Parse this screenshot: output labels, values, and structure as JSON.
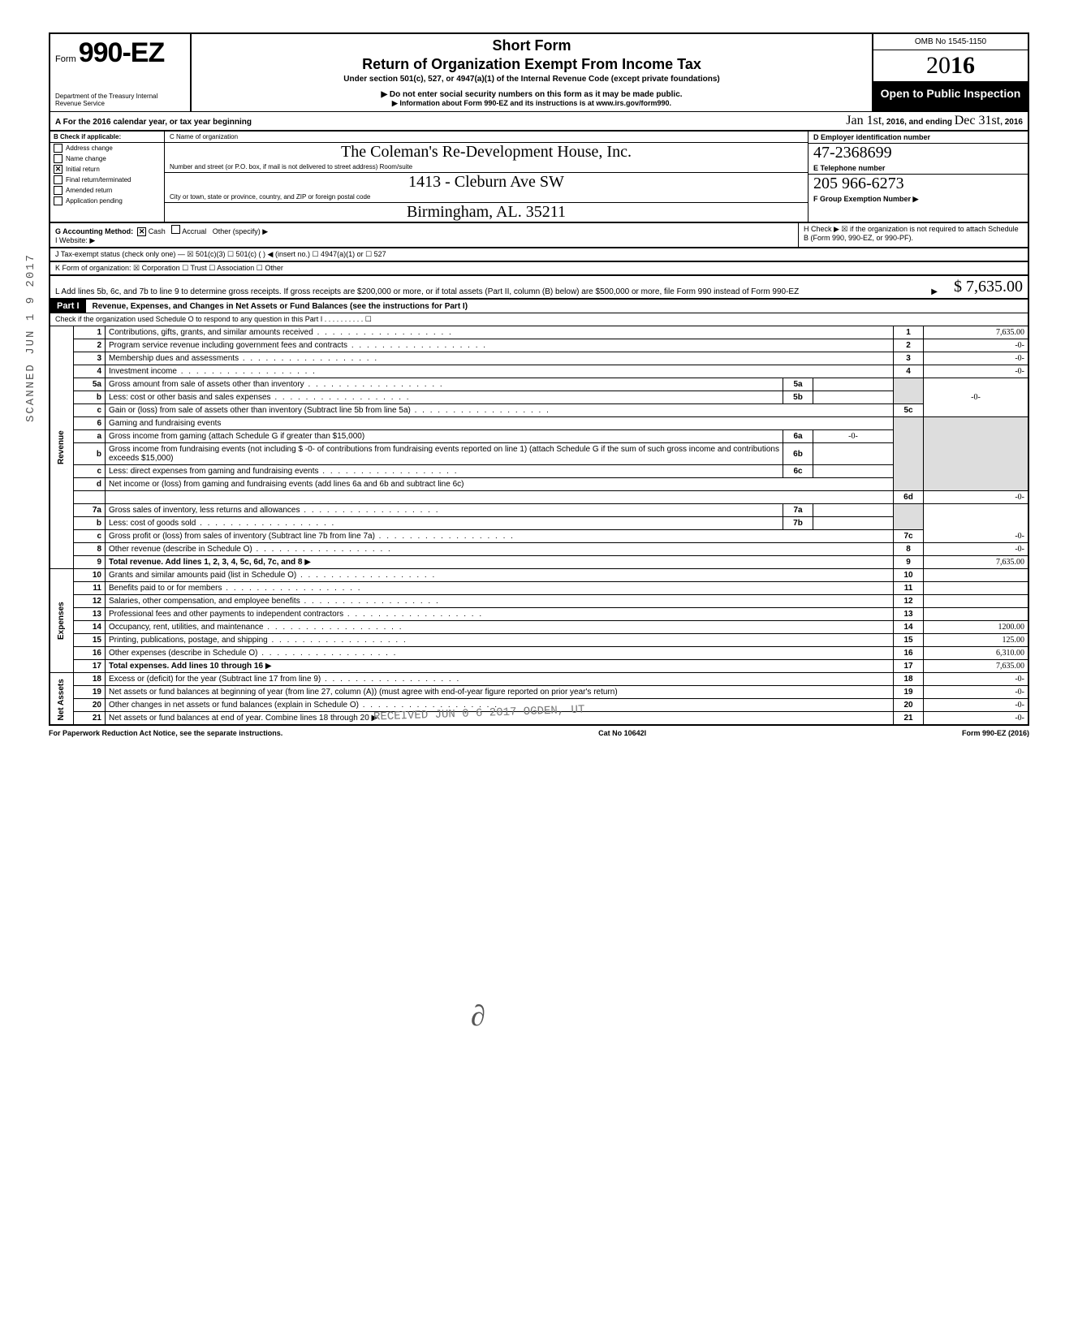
{
  "side_stamp": "SCANNED JUN 1 9 2017",
  "header": {
    "form_label": "Form",
    "form_number": "990-EZ",
    "dept": "Department of the Treasury\nInternal Revenue Service",
    "short_form": "Short Form",
    "title": "Return of Organization Exempt From Income Tax",
    "under": "Under section 501(c), 527, or 4947(a)(1) of the Internal Revenue Code (except private foundations)",
    "donot": "▶ Do not enter social security numbers on this form as it may be made public.",
    "info": "▶ Information about Form 990-EZ and its instructions is at www.irs.gov/form990.",
    "omb": "OMB No 1545-1150",
    "year_prefix": "20",
    "year_bold": "16",
    "open": "Open to Public Inspection"
  },
  "rowA": {
    "label": "A  For the 2016 calendar year, or tax year beginning",
    "begin": "Jan 1st",
    "mid": ", 2016, and ending",
    "end": "Dec 31st",
    "yr": ", 2016"
  },
  "colB": {
    "header": "B  Check if applicable:",
    "items": [
      {
        "label": "Address change",
        "checked": false
      },
      {
        "label": "Name change",
        "checked": false
      },
      {
        "label": "Initial return",
        "checked": true
      },
      {
        "label": "Final return/terminated",
        "checked": false
      },
      {
        "label": "Amended return",
        "checked": false
      },
      {
        "label": "Application pending",
        "checked": false
      }
    ]
  },
  "colC": {
    "name_label": "C  Name of organization",
    "name": "The Coleman's Re-Development House, Inc.",
    "addr_label": "Number and street (or P.O. box, if mail is not delivered to street address)          Room/suite",
    "addr": "1413 - Cleburn Ave SW",
    "city_label": "City or town, state or province, country, and ZIP or foreign postal code",
    "city": "Birmingham, AL.  35211"
  },
  "colD": {
    "label": "D Employer identification number",
    "val": "47-2368699"
  },
  "colE": {
    "label": "E  Telephone number",
    "val": "205  966-6273"
  },
  "colF": {
    "label": "F  Group Exemption Number ▶",
    "val": ""
  },
  "rowG": {
    "label": "G  Accounting Method:",
    "cash": "Cash",
    "accrual": "Accrual",
    "other": "Other (specify) ▶"
  },
  "rowH": "H  Check ▶ ☒ if the organization is not required to attach Schedule B (Form 990, 990-EZ, or 990-PF).",
  "rowI": "I   Website: ▶",
  "rowJ": "J  Tax-exempt status (check only one) —  ☒ 501(c)(3)   ☐ 501(c) (      ) ◀ (insert no.)  ☐ 4947(a)(1) or   ☐ 527",
  "rowK": "K  Form of organization:   ☒ Corporation    ☐ Trust    ☐ Association    ☐ Other",
  "rowL": {
    "text": "L  Add lines 5b, 6c, and 7b to line 9 to determine gross receipts. If gross receipts are $200,000 or more, or if total assets (Part II, column (B) below) are $500,000 or more, file Form 990 instead of Form 990-EZ",
    "amt": "$ 7,635.00"
  },
  "part1": {
    "label": "Part I",
    "title": "Revenue, Expenses, and Changes in Net Assets or Fund Balances (see the instructions for Part I)",
    "check": "Check if the organization used Schedule O to respond to any question in this Part I . . . . . . . . . . ☐"
  },
  "lines": {
    "l1": {
      "n": "1",
      "d": "Contributions, gifts, grants, and similar amounts received",
      "rn": "1",
      "rv": "7,635.00"
    },
    "l2": {
      "n": "2",
      "d": "Program service revenue including government fees and contracts",
      "rn": "2",
      "rv": "-0-"
    },
    "l3": {
      "n": "3",
      "d": "Membership dues and assessments",
      "rn": "3",
      "rv": "-0-"
    },
    "l4": {
      "n": "4",
      "d": "Investment income",
      "rn": "4",
      "rv": "-0-"
    },
    "l5a": {
      "n": "5a",
      "d": "Gross amount from sale of assets other than inventory",
      "in": "5a",
      "iv": ""
    },
    "l5b": {
      "n": "b",
      "d": "Less: cost or other basis and sales expenses",
      "in": "5b",
      "iv": ""
    },
    "l5c": {
      "n": "c",
      "d": "Gain or (loss) from sale of assets other than inventory (Subtract line 5b from line 5a)",
      "rn": "5c",
      "rv": "-0-"
    },
    "l6": {
      "n": "6",
      "d": "Gaming and fundraising events"
    },
    "l6a": {
      "n": "a",
      "d": "Gross income from gaming (attach Schedule G if greater than $15,000)",
      "in": "6a",
      "iv": "-0-"
    },
    "l6b": {
      "n": "b",
      "d": "Gross income from fundraising events (not including  $    -0-    of contributions from fundraising events reported on line 1) (attach Schedule G if the sum of such gross income and contributions exceeds $15,000)",
      "in": "6b",
      "iv": ""
    },
    "l6c": {
      "n": "c",
      "d": "Less: direct expenses from gaming and fundraising events",
      "in": "6c",
      "iv": ""
    },
    "l6d": {
      "n": "d",
      "d": "Net income or (loss) from gaming and fundraising events (add lines 6a and 6b and subtract line 6c)",
      "rn": "6d",
      "rv": "-0-"
    },
    "l7a": {
      "n": "7a",
      "d": "Gross sales of inventory, less returns and allowances",
      "in": "7a",
      "iv": ""
    },
    "l7b": {
      "n": "b",
      "d": "Less: cost of goods sold",
      "in": "7b",
      "iv": ""
    },
    "l7c": {
      "n": "c",
      "d": "Gross profit or (loss) from sales of inventory (Subtract line 7b from line 7a)",
      "rn": "7c",
      "rv": "-0-"
    },
    "l8": {
      "n": "8",
      "d": "Other revenue (describe in Schedule O)",
      "rn": "8",
      "rv": "-0-"
    },
    "l9": {
      "n": "9",
      "d": "Total revenue. Add lines 1, 2, 3, 4, 5c, 6d, 7c, and 8",
      "rn": "9",
      "rv": "7,635.00"
    },
    "l10": {
      "n": "10",
      "d": "Grants and similar amounts paid (list in Schedule O)",
      "rn": "10",
      "rv": ""
    },
    "l11": {
      "n": "11",
      "d": "Benefits paid to or for members",
      "rn": "11",
      "rv": ""
    },
    "l12": {
      "n": "12",
      "d": "Salaries, other compensation, and employee benefits",
      "rn": "12",
      "rv": ""
    },
    "l13": {
      "n": "13",
      "d": "Professional fees and other payments to independent contractors",
      "rn": "13",
      "rv": ""
    },
    "l14": {
      "n": "14",
      "d": "Occupancy, rent, utilities, and maintenance",
      "rn": "14",
      "rv": "1200.00"
    },
    "l15": {
      "n": "15",
      "d": "Printing, publications, postage, and shipping",
      "rn": "15",
      "rv": "125.00"
    },
    "l16": {
      "n": "16",
      "d": "Other expenses (describe in Schedule O)",
      "rn": "16",
      "rv": "6,310.00"
    },
    "l17": {
      "n": "17",
      "d": "Total expenses. Add lines 10 through 16",
      "rn": "17",
      "rv": "7,635.00"
    },
    "l18": {
      "n": "18",
      "d": "Excess or (deficit) for the year (Subtract line 17 from line 9)",
      "rn": "18",
      "rv": "-0-"
    },
    "l19": {
      "n": "19",
      "d": "Net assets or fund balances at beginning of year (from line 27, column (A)) (must agree with end-of-year figure reported on prior year's return)",
      "rn": "19",
      "rv": "-0-"
    },
    "l20": {
      "n": "20",
      "d": "Other changes in net assets or fund balances (explain in Schedule O)",
      "rn": "20",
      "rv": "-0-"
    },
    "l21": {
      "n": "21",
      "d": "Net assets or fund balances at end of year. Combine lines 18 through 20",
      "rn": "21",
      "rv": "-0-"
    }
  },
  "side_labels": {
    "revenue": "Revenue",
    "expenses": "Expenses",
    "netassets": "Net Assets"
  },
  "footer": {
    "left": "For Paperwork Reduction Act Notice, see the separate instructions.",
    "mid": "Cat No 10642I",
    "right": "Form 990-EZ (2016)"
  },
  "received": "RECEIVED\nJUN 0 6 2017\nOGDEN, UT"
}
